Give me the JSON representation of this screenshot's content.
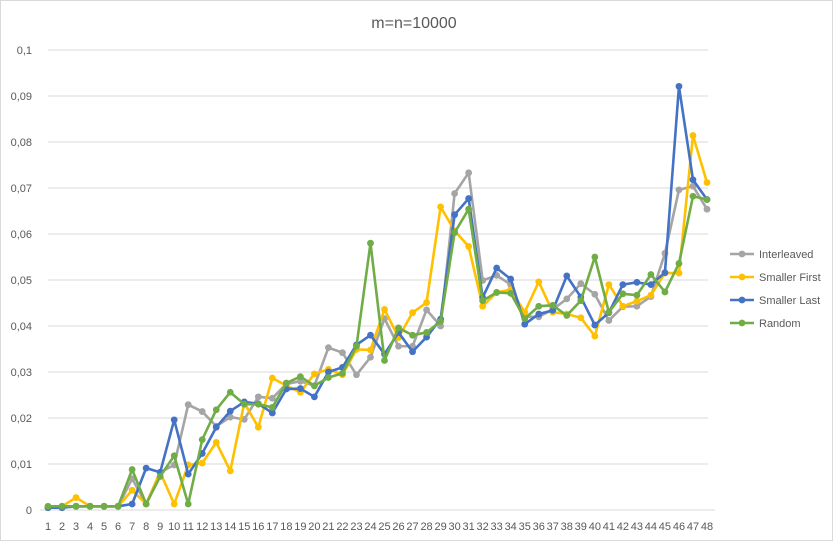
{
  "chart_data": {
    "type": "line",
    "title": "m=n=10000",
    "xlabel": "",
    "ylabel": "",
    "x": [
      1,
      2,
      3,
      4,
      5,
      6,
      7,
      8,
      9,
      10,
      11,
      12,
      13,
      14,
      15,
      16,
      17,
      18,
      19,
      20,
      21,
      22,
      23,
      24,
      25,
      26,
      27,
      28,
      29,
      30,
      31,
      32,
      33,
      34,
      35,
      36,
      37,
      38,
      39,
      40,
      41,
      42,
      43,
      44,
      45,
      46,
      47,
      48
    ],
    "ylim": [
      0,
      0.1
    ],
    "yticks": [
      0,
      0.01,
      0.02,
      0.03,
      0.04,
      0.05,
      0.06,
      0.07,
      0.08,
      0.09,
      0.1
    ],
    "ytick_labels": [
      "0",
      "0,01",
      "0,02",
      "0,03",
      "0,04",
      "0,05",
      "0,06",
      "0,07",
      "0,08",
      "0,09",
      "0,1"
    ],
    "grid": "horizontal",
    "legend_position": "right",
    "series": [
      {
        "name": "Interleaved",
        "color": "#a5a5a5",
        "values": [
          0.0005,
          0.0008,
          0.0008,
          0.0008,
          0.0008,
          0.0008,
          0.0068,
          0.0013,
          0.0082,
          0.0098,
          0.0229,
          0.0214,
          0.0182,
          0.0202,
          0.0197,
          0.0246,
          0.0243,
          0.0274,
          0.028,
          0.027,
          0.0353,
          0.0342,
          0.0294,
          0.0332,
          0.0416,
          0.0356,
          0.0356,
          0.0435,
          0.04,
          0.0688,
          0.0733,
          0.0499,
          0.051,
          0.049,
          0.042,
          0.042,
          0.0436,
          0.0459,
          0.0492,
          0.0469,
          0.0412,
          0.0442,
          0.0443,
          0.0464,
          0.0558,
          0.0696,
          0.0704,
          0.0654
        ]
      },
      {
        "name": "Smaller First",
        "color": "#ffc000",
        "values": [
          0.0005,
          0.0008,
          0.0027,
          0.0008,
          0.0008,
          0.0008,
          0.0043,
          0.0013,
          0.0082,
          0.0013,
          0.0098,
          0.0102,
          0.0147,
          0.0085,
          0.0233,
          0.018,
          0.0287,
          0.027,
          0.0256,
          0.0296,
          0.0306,
          0.0294,
          0.0349,
          0.0348,
          0.0436,
          0.0375,
          0.0429,
          0.0451,
          0.0659,
          0.0607,
          0.0573,
          0.0443,
          0.0473,
          0.0479,
          0.043,
          0.0496,
          0.043,
          0.0426,
          0.0418,
          0.0378,
          0.049,
          0.0443,
          0.0454,
          0.0467,
          0.0515,
          0.0515,
          0.0814,
          0.0712
        ]
      },
      {
        "name": "Smaller Last",
        "color": "#4472c4",
        "values": [
          0.0005,
          0.0005,
          0.0008,
          0.0008,
          0.0008,
          0.0008,
          0.0013,
          0.0091,
          0.0082,
          0.0196,
          0.0078,
          0.0123,
          0.018,
          0.0215,
          0.0235,
          0.0231,
          0.0211,
          0.0263,
          0.0264,
          0.0246,
          0.03,
          0.031,
          0.0359,
          0.038,
          0.0339,
          0.0386,
          0.0344,
          0.0376,
          0.0415,
          0.0642,
          0.0677,
          0.0462,
          0.0526,
          0.0502,
          0.0404,
          0.0426,
          0.0434,
          0.0509,
          0.0463,
          0.0402,
          0.0429,
          0.049,
          0.0495,
          0.049,
          0.0516,
          0.0921,
          0.0718,
          0.0675
        ]
      },
      {
        "name": "Random",
        "color": "#70ad47",
        "values": [
          0.0008,
          0.0008,
          0.0008,
          0.0008,
          0.0008,
          0.0008,
          0.0088,
          0.0013,
          0.0073,
          0.0118,
          0.0013,
          0.0153,
          0.0218,
          0.0256,
          0.023,
          0.023,
          0.0223,
          0.0276,
          0.029,
          0.027,
          0.0288,
          0.0297,
          0.0356,
          0.058,
          0.0325,
          0.0396,
          0.038,
          0.0386,
          0.041,
          0.0603,
          0.0654,
          0.0455,
          0.0473,
          0.0471,
          0.0416,
          0.0443,
          0.0445,
          0.0423,
          0.0455,
          0.055,
          0.043,
          0.047,
          0.0467,
          0.0512,
          0.0474,
          0.0536,
          0.0682,
          0.0675
        ]
      }
    ]
  }
}
